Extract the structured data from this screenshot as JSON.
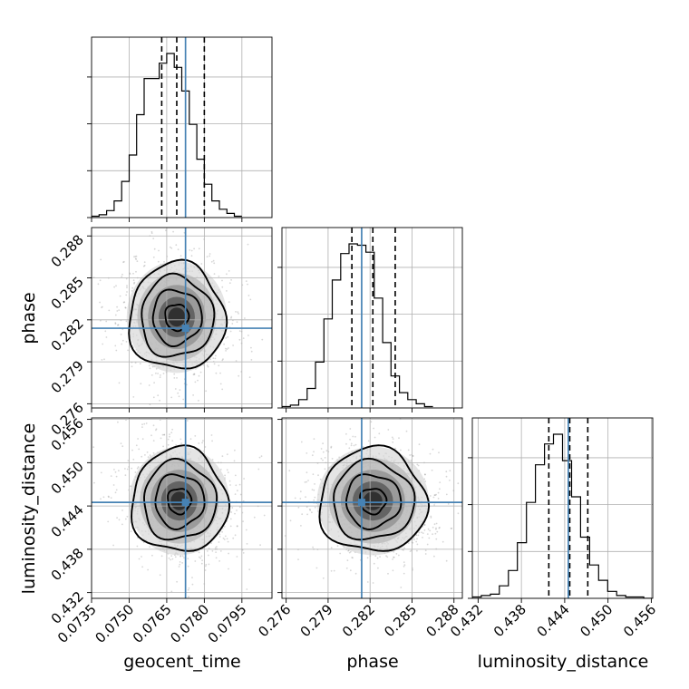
{
  "chart_data": {
    "type": "corner",
    "parameters": [
      {
        "name": "geocent_time",
        "ticks": [
          "0.0735",
          "0.0750",
          "0.0765",
          "0.0780",
          "0.0795"
        ],
        "tick_values": [
          0.0735,
          0.075,
          0.0765,
          0.078,
          0.0795
        ],
        "range": [
          0.0735,
          0.0807
        ],
        "truth": 0.07725,
        "quantiles": [
          0.0763,
          0.0769,
          0.078
        ]
      },
      {
        "name": "phase",
        "ticks": [
          "0.276",
          "0.279",
          "0.282",
          "0.285",
          "0.288"
        ],
        "tick_values": [
          0.276,
          0.279,
          0.282,
          0.285,
          0.288
        ],
        "range": [
          0.2757,
          0.2886
        ],
        "truth": 0.2814,
        "quantiles": [
          0.2807,
          0.2822,
          0.2838
        ]
      },
      {
        "name": "luminosity_distance",
        "ticks": [
          "0.432",
          "0.438",
          "0.444",
          "0.450",
          "0.456"
        ],
        "tick_values": [
          0.432,
          0.438,
          0.444,
          0.45,
          0.456
        ],
        "range": [
          0.4312,
          0.4562
        ],
        "truth": 0.4445,
        "quantiles": [
          0.4418,
          0.4447,
          0.4472
        ]
      }
    ],
    "histograms": [
      {
        "parameter": "geocent_time",
        "edges_start": 0.0735,
        "bin_width": 0.0003,
        "counts": [
          1,
          2,
          5,
          12,
          26,
          45,
          74,
          100,
          100,
          111,
          118,
          108,
          91,
          67,
          42,
          24,
          12,
          6,
          3,
          1
        ]
      },
      {
        "parameter": "phase",
        "edges_start": 0.2757,
        "bin_width": 0.0006,
        "counts": [
          1,
          2,
          6,
          14,
          33,
          64,
          92,
          111,
          118,
          117,
          112,
          79,
          47,
          23,
          11,
          6,
          3,
          1
        ]
      },
      {
        "parameter": "luminosity_distance",
        "edges_start": 0.4312,
        "bin_width": 0.00125,
        "counts": [
          1,
          2,
          3,
          9,
          20,
          40,
          69,
          96,
          111,
          118,
          99,
          73,
          44,
          24,
          13,
          5,
          2,
          1,
          1,
          0
        ]
      }
    ],
    "joint": [
      {
        "x": "geocent_time",
        "y": "phase",
        "center": [
          0.0769,
          0.2822
        ],
        "spread": [
          0.00085,
          0.0017
        ]
      },
      {
        "x": "geocent_time",
        "y": "luminosity_distance",
        "center": [
          0.077,
          0.4447
        ],
        "spread": [
          0.00085,
          0.0032
        ]
      },
      {
        "x": "phase",
        "y": "luminosity_distance",
        "center": [
          0.2822,
          0.4447
        ],
        "spread": [
          0.0017,
          0.0032
        ]
      }
    ],
    "contour_levels": 4,
    "grid": true,
    "title": "",
    "legend": "none"
  }
}
